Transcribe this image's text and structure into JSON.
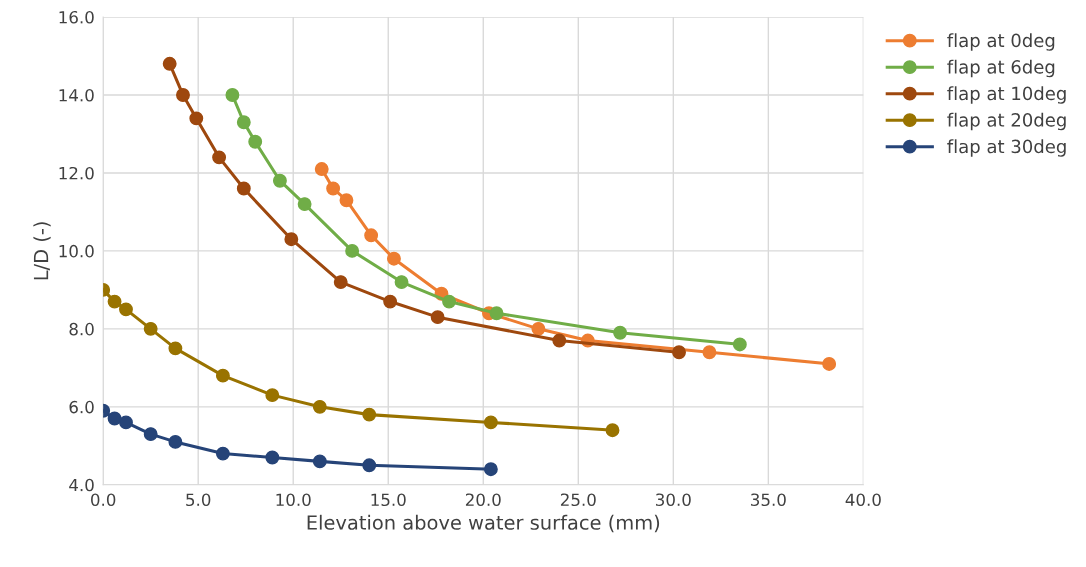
{
  "chart_data": {
    "type": "line",
    "xlabel": "Elevation above water surface (mm)",
    "ylabel": "L/D (-)",
    "xlim": [
      0,
      40
    ],
    "ylim": [
      4,
      16
    ],
    "xticks": [
      {
        "value": 0,
        "label": "0.0"
      },
      {
        "value": 5,
        "label": "5.0"
      },
      {
        "value": 10,
        "label": "10.0"
      },
      {
        "value": 15,
        "label": "15.0"
      },
      {
        "value": 20,
        "label": "20.0"
      },
      {
        "value": 25,
        "label": "25.0"
      },
      {
        "value": 30,
        "label": "30.0"
      },
      {
        "value": 35,
        "label": "35.0"
      },
      {
        "value": 40,
        "label": "40.0"
      }
    ],
    "yticks": [
      {
        "value": 4,
        "label": "4.0"
      },
      {
        "value": 6,
        "label": "6.0"
      },
      {
        "value": 8,
        "label": "8.0"
      },
      {
        "value": 10,
        "label": "10.0"
      },
      {
        "value": 12,
        "label": "12.0"
      },
      {
        "value": 14,
        "label": "14.0"
      },
      {
        "value": 16,
        "label": "16.0"
      }
    ],
    "grid": true,
    "legend": "top right",
    "marker": "circle",
    "line_style": "solid",
    "series": [
      {
        "name": "flap at 0deg",
        "color": "#ed7d31",
        "x": [
          11.5,
          12.1,
          12.8,
          14.1,
          15.3,
          17.8,
          20.3,
          22.9,
          25.5,
          31.9,
          38.2
        ],
        "values": [
          12.1,
          11.6,
          11.3,
          10.4,
          9.8,
          8.9,
          8.4,
          8.0,
          7.7,
          7.4,
          7.1
        ]
      },
      {
        "name": "flap at 6deg",
        "color": "#70ad47",
        "x": [
          6.8,
          7.4,
          8.0,
          9.3,
          10.6,
          13.1,
          15.7,
          18.2,
          20.7,
          27.2,
          33.5
        ],
        "values": [
          14.0,
          13.3,
          12.8,
          11.8,
          11.2,
          10.0,
          9.2,
          8.7,
          8.4,
          7.9,
          7.6
        ]
      },
      {
        "name": "flap at 10deg",
        "color": "#9e480e",
        "x": [
          3.5,
          4.2,
          4.9,
          6.1,
          7.4,
          9.9,
          12.5,
          15.1,
          17.6,
          24.0,
          30.3
        ],
        "values": [
          14.8,
          14.0,
          13.4,
          12.4,
          11.6,
          10.3,
          9.2,
          8.7,
          8.3,
          7.7,
          7.4
        ]
      },
      {
        "name": "flap at 20deg",
        "color": "#997300",
        "x": [
          0,
          0.6,
          1.2,
          2.5,
          3.8,
          6.3,
          8.9,
          11.4,
          14.0,
          20.4,
          26.8
        ],
        "values": [
          9.0,
          8.7,
          8.5,
          8.0,
          7.5,
          6.8,
          6.3,
          6.0,
          5.8,
          5.6,
          5.4
        ]
      },
      {
        "name": "flap at 30deg",
        "color": "#264478",
        "x": [
          0,
          0.6,
          1.2,
          2.5,
          3.8,
          6.3,
          8.9,
          11.4,
          14.0,
          20.4
        ],
        "values": [
          5.9,
          5.7,
          5.6,
          5.3,
          5.1,
          4.8,
          4.7,
          4.6,
          4.5,
          4.4
        ]
      }
    ]
  }
}
